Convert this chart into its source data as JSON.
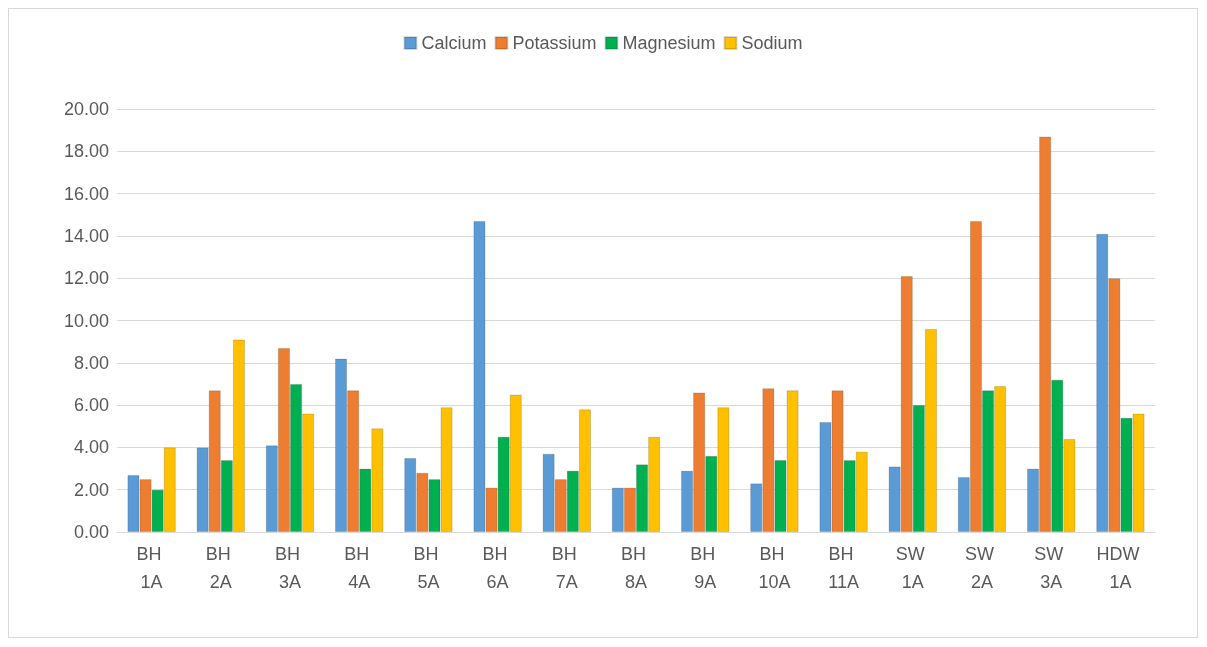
{
  "chart_data": {
    "type": "bar",
    "categories": [
      "BH 1A",
      "BH 2A",
      "BH 3A",
      "BH 4A",
      "BH 5A",
      "BH 6A",
      "BH 7A",
      "BH 8A",
      "BH 9A",
      "BH 10A",
      "BH 11A",
      "SW 1A",
      "SW 2A",
      "SW 3A",
      "HDW 1A"
    ],
    "series": [
      {
        "name": "Calcium",
        "color": "#5b9bd5",
        "values": [
          2.7,
          4.0,
          4.1,
          8.2,
          3.5,
          14.7,
          3.7,
          2.1,
          2.9,
          2.3,
          5.2,
          3.1,
          2.6,
          3.0,
          14.1
        ]
      },
      {
        "name": "Potassium",
        "color": "#ed7d31",
        "values": [
          2.5,
          6.7,
          8.7,
          6.7,
          2.8,
          2.1,
          2.5,
          2.1,
          6.6,
          6.8,
          6.7,
          12.1,
          14.7,
          18.7,
          12.0
        ]
      },
      {
        "name": "Magnesium",
        "color": "#00b050",
        "values": [
          2.0,
          3.4,
          7.0,
          3.0,
          2.5,
          4.5,
          2.9,
          3.2,
          3.6,
          3.4,
          3.4,
          6.0,
          6.7,
          7.2,
          5.4
        ]
      },
      {
        "name": "Sodium",
        "color": "#ffc000",
        "values": [
          4.0,
          9.1,
          5.6,
          4.9,
          5.9,
          6.5,
          5.8,
          4.5,
          5.9,
          6.7,
          3.8,
          9.6,
          6.9,
          4.4,
          5.6
        ]
      }
    ],
    "ylim": [
      0,
      20
    ],
    "yticks": [
      {
        "value": 0,
        "label": "0.00"
      },
      {
        "value": 2,
        "label": "2.00"
      },
      {
        "value": 4,
        "label": "4.00"
      },
      {
        "value": 6,
        "label": "6.00"
      },
      {
        "value": 8,
        "label": "8.00"
      },
      {
        "value": 10,
        "label": "10.00"
      },
      {
        "value": 12,
        "label": "12.00"
      },
      {
        "value": 14,
        "label": "14.00"
      },
      {
        "value": 16,
        "label": "16.00"
      },
      {
        "value": 18,
        "label": "18.00"
      },
      {
        "value": 20,
        "label": "20.00"
      }
    ],
    "grid": "y",
    "legend": "top"
  }
}
